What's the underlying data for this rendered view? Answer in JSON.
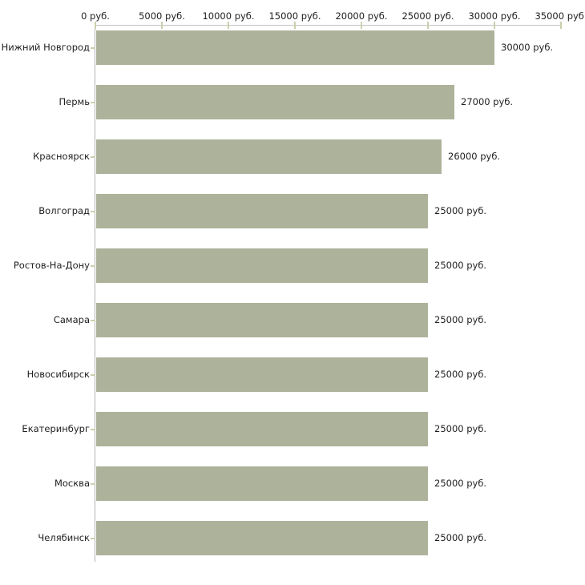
{
  "chart_data": {
    "type": "bar",
    "orientation": "horizontal",
    "title": "",
    "categories": [
      "Нижний Новгород",
      "Пермь",
      "Красноярск",
      "Волгоград",
      "Ростов-На-Дону",
      "Самара",
      "Новосибирск",
      "Екатеринбург",
      "Москва",
      "Челябинск"
    ],
    "values": [
      30000,
      27000,
      26000,
      25000,
      25000,
      25000,
      25000,
      25000,
      25000,
      25000
    ],
    "value_labels": [
      "30000 руб.",
      "27000 руб.",
      "26000 руб.",
      "25000 руб.",
      "25000 руб.",
      "25000 руб.",
      "25000 руб.",
      "25000 руб.",
      "25000 руб.",
      "25000 руб."
    ],
    "x_tick_values": [
      0,
      5000,
      10000,
      15000,
      20000,
      25000,
      30000,
      35000
    ],
    "x_tick_labels": [
      "0 руб.",
      "5000 руб.",
      "10000 руб.",
      "15000 руб.",
      "20000 руб.",
      "25000 руб.",
      "30000 руб.",
      "35000 руб."
    ],
    "xlim": [
      0,
      35000
    ],
    "xlabel": "",
    "ylabel": "",
    "legend_position": "none",
    "grid": "off",
    "colors": {
      "bar_fill": "#adb39b",
      "x_axis_line": "#c3c3c3",
      "y_axis_line": "#b4b4b4",
      "tick_mark": "#cdceae",
      "text": "#1f1f1f",
      "background": "#ffffff"
    }
  }
}
